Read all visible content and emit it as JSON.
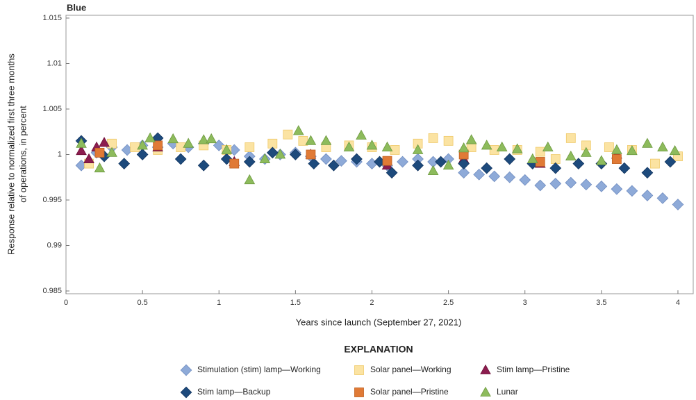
{
  "chart_data": {
    "type": "scatter",
    "title": "Blue",
    "x_label": "Years since launch (September 27, 2021)",
    "y_label": [
      "Response relative to normalized first three months",
      "of operations, in percent"
    ],
    "legend_title": "EXPLANATION",
    "xlim": [
      0,
      4.1
    ],
    "xticks": [
      0,
      0.5,
      1,
      1.5,
      2,
      2.5,
      3,
      3.5,
      4
    ],
    "ylim": [
      0.985,
      1.015
    ],
    "yticks": [
      0.985,
      0.99,
      0.995,
      1,
      1.005,
      1.01,
      1.015
    ],
    "series": [
      {
        "name": "Stimulation (stim) lamp—Working",
        "color": "#8eaad8",
        "edge": "#6f8cc0",
        "marker": "diamond",
        "x": [
          0.1,
          0.2,
          0.3,
          0.4,
          0.5,
          0.6,
          0.7,
          0.8,
          0.9,
          1.0,
          1.1,
          1.2,
          1.3,
          1.4,
          1.5,
          1.6,
          1.7,
          1.8,
          1.9,
          2.0,
          2.1,
          2.2,
          2.3,
          2.4,
          2.5,
          2.6,
          2.7,
          2.8,
          2.9,
          3.0,
          3.1,
          3.2,
          3.3,
          3.4,
          3.5,
          3.6,
          3.7,
          3.8,
          3.9,
          4.0
        ],
        "values": [
          0.9988,
          1.0002,
          1.0008,
          1.0005,
          1.001,
          1.0008,
          1.0012,
          1.0008,
          1.0012,
          1.001,
          1.0005,
          0.9998,
          0.9995,
          1.0,
          1.0002,
          0.9998,
          0.9995,
          0.9993,
          0.9992,
          0.999,
          0.9988,
          0.9992,
          0.9995,
          0.9992,
          0.9995,
          0.998,
          0.9978,
          0.9976,
          0.9975,
          0.9972,
          0.9966,
          0.9968,
          0.9969,
          0.9967,
          0.9965,
          0.9962,
          0.996,
          0.9955,
          0.9952,
          0.9945
        ]
      },
      {
        "name": "Solar panel—Working",
        "color": "#fbe3a2",
        "edge": "#efca6a",
        "marker": "square",
        "x": [
          0.15,
          0.3,
          0.45,
          0.6,
          0.75,
          0.9,
          1.05,
          1.2,
          1.35,
          1.45,
          1.55,
          1.7,
          1.85,
          2.0,
          2.15,
          2.3,
          2.4,
          2.5,
          2.65,
          2.8,
          2.95,
          3.1,
          3.2,
          3.3,
          3.4,
          3.55,
          3.7,
          3.85,
          4.0
        ],
        "values": [
          0.999,
          1.0012,
          1.0008,
          1.0005,
          1.0008,
          1.001,
          1.0005,
          1.0008,
          1.0012,
          1.0022,
          1.0015,
          1.0008,
          1.001,
          1.0008,
          1.0005,
          1.0012,
          1.0018,
          1.0015,
          1.0008,
          1.0005,
          1.0005,
          1.0003,
          0.9995,
          1.0018,
          1.001,
          1.0008,
          1.0005,
          0.999,
          0.9998
        ]
      },
      {
        "name": "Stim lamp—Pristine",
        "color": "#8c1d4f",
        "edge": "#6e1038",
        "marker": "triangle",
        "x": [
          0.1,
          0.15,
          0.2,
          0.25,
          0.6,
          1.1,
          1.6,
          2.1,
          2.6,
          3.1,
          3.6
        ],
        "values": [
          1.0004,
          0.9995,
          1.0008,
          1.0013,
          1.0008,
          0.9992,
          1.0,
          0.9988,
          0.9995,
          0.999,
          1.0
        ]
      },
      {
        "name": "Stim lamp—Backup",
        "color": "#1d4a7c",
        "edge": "#123560",
        "marker": "diamond",
        "x": [
          0.1,
          0.25,
          0.38,
          0.5,
          0.6,
          0.75,
          0.9,
          1.05,
          1.2,
          1.35,
          1.5,
          1.62,
          1.75,
          1.9,
          2.05,
          2.13,
          2.3,
          2.45,
          2.6,
          2.75,
          2.9,
          3.05,
          3.2,
          3.35,
          3.5,
          3.65,
          3.8,
          3.95
        ],
        "values": [
          1.0015,
          0.9998,
          0.999,
          1.0,
          1.0018,
          0.9995,
          0.9988,
          0.9995,
          0.9992,
          1.0002,
          1.0,
          0.999,
          0.9988,
          0.9995,
          0.9992,
          0.998,
          0.9988,
          0.9992,
          0.999,
          0.9985,
          0.9995,
          0.999,
          0.9985,
          0.999,
          0.999,
          0.9985,
          0.998,
          0.9992
        ]
      },
      {
        "name": "Solar panel—Pristine",
        "color": "#e07a36",
        "edge": "#c06020",
        "marker": "square",
        "x": [
          0.22,
          0.6,
          1.1,
          1.6,
          2.1,
          2.6,
          3.1,
          3.6
        ],
        "values": [
          1.0002,
          1.001,
          0.999,
          1.0,
          0.9993,
          1.0,
          0.9992,
          0.9995
        ]
      },
      {
        "name": "Lunar",
        "color": "#8dbb5c",
        "edge": "#6e9a40",
        "marker": "triangle",
        "x": [
          0.1,
          0.22,
          0.3,
          0.5,
          0.55,
          0.7,
          0.8,
          0.9,
          0.95,
          1.05,
          1.2,
          1.3,
          1.4,
          1.52,
          1.6,
          1.7,
          1.85,
          1.93,
          2.0,
          2.1,
          2.3,
          2.4,
          2.5,
          2.6,
          2.65,
          2.75,
          2.85,
          2.95,
          3.05,
          3.15,
          3.3,
          3.4,
          3.5,
          3.6,
          3.7,
          3.8,
          3.9,
          3.98
        ],
        "values": [
          1.0012,
          0.9985,
          1.0002,
          1.001,
          1.0018,
          1.0017,
          1.0012,
          1.0016,
          1.0017,
          1.0005,
          0.9972,
          0.9995,
          1.0,
          1.0026,
          1.0015,
          1.0015,
          1.0008,
          1.0021,
          1.001,
          1.0008,
          1.0005,
          0.9982,
          0.9988,
          1.0007,
          1.0016,
          1.001,
          1.0008,
          1.0006,
          0.9995,
          1.0008,
          0.9998,
          1.0002,
          0.9993,
          1.0005,
          1.0004,
          1.0012,
          1.0008,
          1.0004
        ]
      }
    ]
  }
}
